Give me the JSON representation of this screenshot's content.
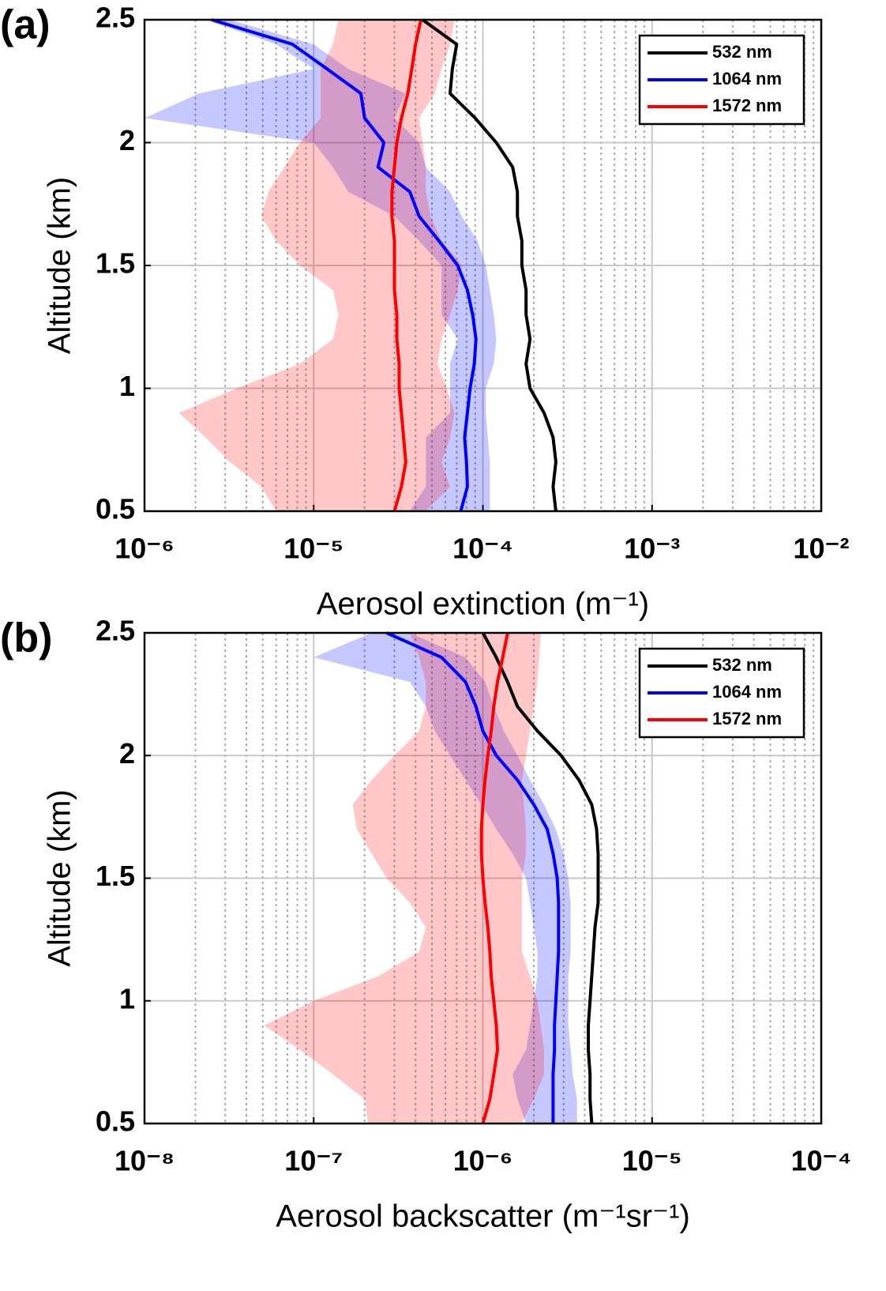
{
  "chart_data": [
    {
      "type": "line",
      "panel_label": "(a)",
      "x_label": "Aerosol extinction (m⁻¹)",
      "y_label": "Altitude (km)",
      "xscale": "log",
      "grid": true,
      "minor_grid": true,
      "legend": "upper right",
      "xlim": [
        1e-06,
        0.01
      ],
      "xticks": [
        {
          "value": 1e-06,
          "label": "10⁻⁶"
        },
        {
          "value": 1e-05,
          "label": "10⁻⁵"
        },
        {
          "value": 0.0001,
          "label": "10⁻⁴"
        },
        {
          "value": 0.001,
          "label": "10⁻³"
        },
        {
          "value": 0.01,
          "label": "10⁻²"
        }
      ],
      "ylim": [
        0.5,
        2.5
      ],
      "yticks": [
        0.5,
        1,
        1.5,
        2,
        2.5
      ],
      "y": [
        0.5,
        0.6,
        0.7,
        0.8,
        0.9,
        1.0,
        1.1,
        1.2,
        1.3,
        1.4,
        1.5,
        1.6,
        1.7,
        1.8,
        1.9,
        2.0,
        2.1,
        2.2,
        2.3,
        2.4,
        2.5
      ],
      "series": [
        {
          "name": "532 nm",
          "color": "#000000",
          "values": [
            0.00027,
            0.00026,
            0.00027,
            0.00026,
            0.00023,
            0.00019,
            0.00018,
            0.00019,
            0.00018,
            0.00018,
            0.00017,
            0.00017,
            0.00016,
            0.00016,
            0.00015,
            0.00012,
            9e-05,
            6.4e-05,
            6.6e-05,
            7e-05,
            4.4e-05
          ]
        },
        {
          "name": "1064 nm",
          "color": "#0000ff",
          "values": [
            7.4e-05,
            8.1e-05,
            8e-05,
            7.8e-05,
            8.1e-05,
            8.4e-05,
            8.9e-05,
            9.1e-05,
            8.7e-05,
            8.1e-05,
            7.1e-05,
            5.5e-05,
            4.2e-05,
            3.7e-05,
            2.4e-05,
            2.6e-05,
            2e-05,
            1.9e-05,
            1.2e-05,
            7.5e-06,
            2.5e-06
          ],
          "lower": [
            3.7e-05,
            4.6e-05,
            4.6e-05,
            4.6e-05,
            6.4e-05,
            6.4e-05,
            6.4e-05,
            7.1e-05,
            5.7e-05,
            5.7e-05,
            5.7e-05,
            4.2e-05,
            3e-05,
            1.6e-05,
            1.3e-05,
            1e-05,
            1e-06,
            2.1e-06,
            1e-05,
            6e-06,
            2.3e-06
          ],
          "upper": [
            0.00011,
            0.00011,
            0.00011,
            0.000107,
            0.000104,
            0.000104,
            0.000116,
            0.00012,
            0.000116,
            0.00011,
            0.000104,
            9.3e-05,
            7.5e-05,
            6.4e-05,
            4.6e-05,
            4.2e-05,
            3e-05,
            3.5e-05,
            1.6e-05,
            1e-05,
            3.2e-06
          ]
        },
        {
          "name": "1572 nm",
          "color": "#ff0000",
          "values": [
            3e-05,
            3.3e-05,
            3.5e-05,
            3.4e-05,
            3.3e-05,
            3.2e-05,
            3.2e-05,
            3.1e-05,
            3.1e-05,
            3e-05,
            3e-05,
            3e-05,
            2.9e-05,
            2.9e-05,
            3e-05,
            3.1e-05,
            3.3e-05,
            3.6e-05,
            3.8e-05,
            4e-05,
            4.3e-05
          ],
          "lower": [
            6e-06,
            4.9e-06,
            3.2e-06,
            2.3e-06,
            1.6e-06,
            3.5e-06,
            8.3e-06,
            1.3e-05,
            1.4e-05,
            1.3e-05,
            8.3e-06,
            6e-06,
            4.9e-06,
            5.4e-06,
            6.7e-06,
            8.3e-06,
            1.1e-05,
            1.1e-05,
            1.1e-05,
            1.3e-05,
            1.4e-05
          ],
          "upper": [
            4.6e-05,
            6.4e-05,
            5.7e-05,
            6.4e-05,
            6.8e-05,
            6.1e-05,
            5.4e-05,
            5.7e-05,
            6.4e-05,
            7.1e-05,
            7.5e-05,
            5.7e-05,
            4.9e-05,
            4.6e-05,
            4.6e-05,
            4.4e-05,
            4.2e-05,
            5.2e-05,
            5.7e-05,
            6.4e-05,
            6.8e-05
          ]
        }
      ]
    },
    {
      "type": "line",
      "panel_label": "(b)",
      "x_label": "Aerosol backscatter (m⁻¹sr⁻¹)",
      "y_label": "Altitude (km)",
      "xscale": "log",
      "grid": true,
      "minor_grid": true,
      "legend": "upper right",
      "xlim": [
        1e-08,
        0.0001
      ],
      "xticks": [
        {
          "value": 1e-08,
          "label": "10⁻⁸"
        },
        {
          "value": 1e-07,
          "label": "10⁻⁷"
        },
        {
          "value": 1e-06,
          "label": "10⁻⁶"
        },
        {
          "value": 1e-05,
          "label": "10⁻⁵"
        },
        {
          "value": 0.0001,
          "label": "10⁻⁴"
        }
      ],
      "ylim": [
        0.5,
        2.5
      ],
      "yticks": [
        0.5,
        1,
        1.5,
        2,
        2.5
      ],
      "y": [
        0.5,
        0.6,
        0.7,
        0.8,
        0.9,
        1.0,
        1.1,
        1.2,
        1.3,
        1.4,
        1.5,
        1.6,
        1.7,
        1.8,
        1.9,
        2.0,
        2.1,
        2.2,
        2.3,
        2.4,
        2.5
      ],
      "series": [
        {
          "name": "532 nm",
          "color": "#000000",
          "values": [
            4.4e-06,
            4.3e-06,
            4.3e-06,
            4.2e-06,
            4.2e-06,
            4.3e-06,
            4.4e-06,
            4.5e-06,
            4.6e-06,
            4.8e-06,
            4.8e-06,
            4.8e-06,
            4.7e-06,
            4.4e-06,
            3.7e-06,
            2.9e-06,
            2.1e-06,
            1.6e-06,
            1.4e-06,
            1.2e-06,
            1e-06
          ]
        },
        {
          "name": "1064 nm",
          "color": "#0000ff",
          "values": [
            2.6e-06,
            2.6e-06,
            2.6e-06,
            2.65e-06,
            2.65e-06,
            2.7e-06,
            2.75e-06,
            2.8e-06,
            2.8e-06,
            2.8e-06,
            2.75e-06,
            2.6e-06,
            2.4e-06,
            2e-06,
            1.6e-06,
            1.2e-06,
            1e-06,
            9.1e-07,
            7.9e-07,
            5.7e-07,
            2.7e-07
          ],
          "lower": [
            1.8e-06,
            1.6e-06,
            1.5e-06,
            1.8e-06,
            1.9e-06,
            2e-06,
            2.1e-06,
            2.1e-06,
            2e-06,
            1.9e-06,
            1.8e-06,
            1.5e-06,
            1.2e-06,
            9.8e-07,
            7.9e-07,
            6.4e-07,
            5.2e-07,
            4.6e-07,
            3.7e-07,
            1e-07,
            2.2e-07
          ],
          "upper": [
            3.6e-06,
            3.6e-06,
            3.4e-06,
            3.3e-06,
            3.2e-06,
            3.2e-06,
            3.2e-06,
            3.3e-06,
            3.3e-06,
            3.3e-06,
            3.2e-06,
            3e-06,
            2.7e-06,
            2.3e-06,
            1.9e-06,
            1.6e-06,
            1.33e-06,
            1.16e-06,
            1.03e-06,
            7.9e-07,
            3.7e-07
          ]
        },
        {
          "name": "1572 nm",
          "color": "#ff0000",
          "values": [
            1e-06,
            1.1e-06,
            1.16e-06,
            1.22e-06,
            1.2e-06,
            1.16e-06,
            1.12e-06,
            1.1e-06,
            1.07e-06,
            1.03e-06,
            1e-06,
            9.8e-07,
            9.8e-07,
            1e-06,
            1.03e-06,
            1.07e-06,
            1.12e-06,
            1.16e-06,
            1.22e-06,
            1.31e-06,
            1.4e-06
          ],
          "lower": [
            2.1e-07,
            2e-07,
            1.3e-07,
            8.3e-08,
            5.1e-08,
            1e-07,
            2.4e-07,
            4.2e-07,
            4.6e-07,
            3.7e-07,
            2.7e-07,
            2.2e-07,
            1.8e-07,
            1.7e-07,
            2.2e-07,
            3e-07,
            4.2e-07,
            4.6e-07,
            4.6e-07,
            4.2e-07,
            3.7e-07
          ],
          "upper": [
            1.7e-06,
            2e-06,
            2.3e-06,
            2.3e-06,
            2.2e-06,
            2.1e-06,
            1.9e-06,
            1.7e-06,
            1.7e-06,
            1.7e-06,
            1.7e-06,
            1.8e-06,
            1.8e-06,
            1.75e-06,
            1.7e-06,
            1.8e-06,
            1.9e-06,
            2e-06,
            2.1e-06,
            2.15e-06,
            2.2e-06
          ]
        }
      ]
    }
  ]
}
